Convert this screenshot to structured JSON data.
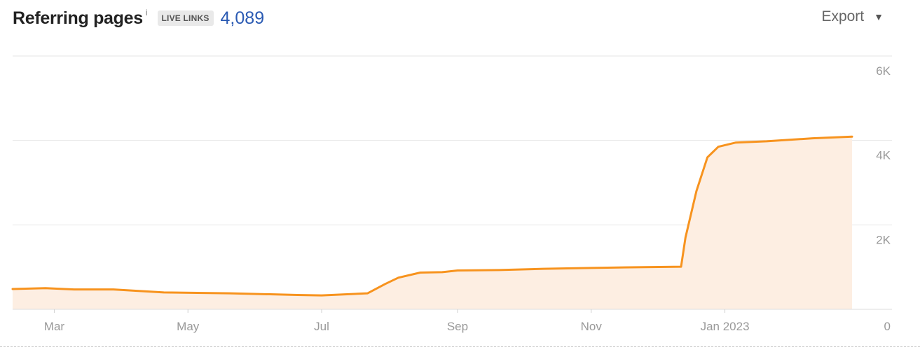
{
  "header": {
    "title": "Referring pages",
    "info_glyph": "i",
    "badge": "LIVE LINKS",
    "count": "4,089"
  },
  "toolbar": {
    "export_label": "Export",
    "export_caret_icon": "caret-down-icon"
  },
  "colors": {
    "line": "#f7931e",
    "fill": "#fdeee2",
    "grid": "#e6e6e6",
    "tick": "#999999",
    "count": "#2a5ab3"
  },
  "chart_data": {
    "type": "area",
    "title": "Referring pages",
    "x_ticks": [
      "Mar",
      "May",
      "Jul",
      "Sep",
      "Nov",
      "Jan 2023"
    ],
    "y_ticks": [
      "0",
      "2K",
      "4K",
      "6K"
    ],
    "ylim": [
      0,
      6000
    ],
    "xlim": [
      "2022-02-10",
      "2023-02-28"
    ],
    "grid": true,
    "legend": "none",
    "series": [
      {
        "points": [
          [
            "2022-02-10",
            480
          ],
          [
            "2022-02-25",
            500
          ],
          [
            "2022-03-10",
            470
          ],
          [
            "2022-03-28",
            470
          ],
          [
            "2022-04-20",
            400
          ],
          [
            "2022-05-20",
            380
          ],
          [
            "2022-06-20",
            340
          ],
          [
            "2022-07-01",
            330
          ],
          [
            "2022-07-22",
            380
          ],
          [
            "2022-07-30",
            600
          ],
          [
            "2022-08-05",
            750
          ],
          [
            "2022-08-15",
            870
          ],
          [
            "2022-08-25",
            880
          ],
          [
            "2022-09-01",
            920
          ],
          [
            "2022-09-20",
            930
          ],
          [
            "2022-10-10",
            960
          ],
          [
            "2022-11-01",
            980
          ],
          [
            "2022-11-25",
            1000
          ],
          [
            "2022-12-12",
            1010
          ],
          [
            "2022-12-14",
            1700
          ],
          [
            "2022-12-19",
            2800
          ],
          [
            "2022-12-24",
            3600
          ],
          [
            "2022-12-29",
            3850
          ],
          [
            "2023-01-06",
            3950
          ],
          [
            "2023-01-20",
            3980
          ],
          [
            "2023-02-10",
            4050
          ],
          [
            "2023-02-28",
            4089
          ]
        ]
      }
    ]
  }
}
